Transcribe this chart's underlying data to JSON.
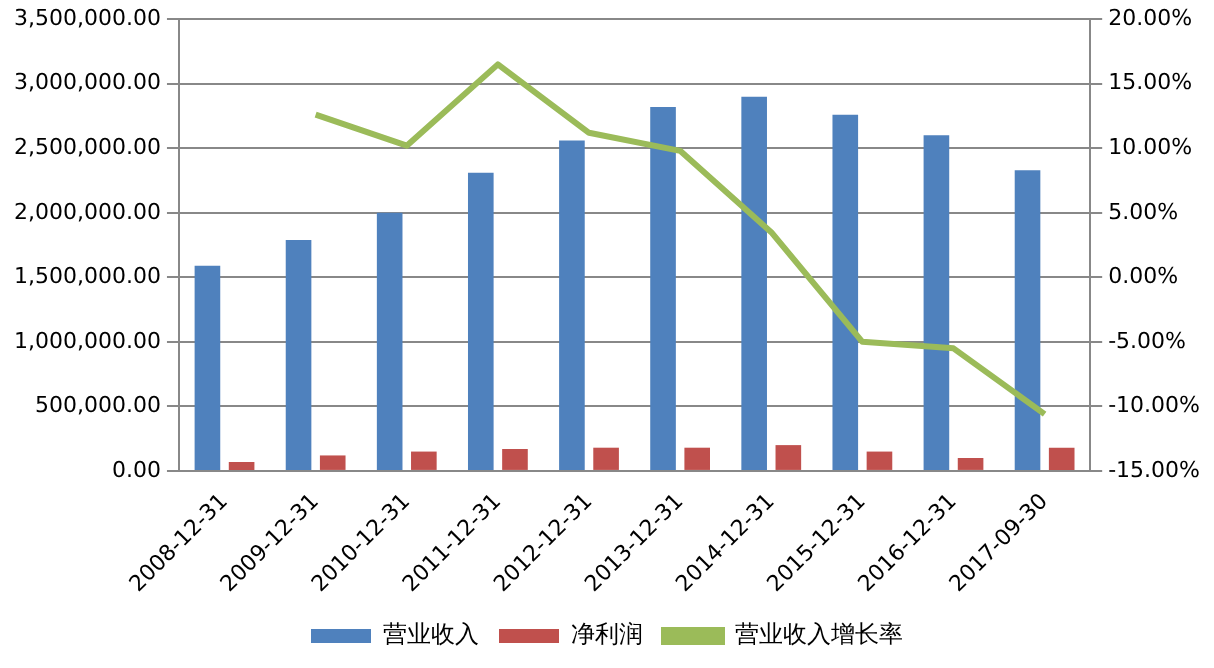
{
  "chart_data": {
    "type": "bar",
    "categories": [
      "2008-12-31",
      "2009-12-31",
      "2010-12-31",
      "2011-12-31",
      "2012-12-31",
      "2013-12-31",
      "2014-12-31",
      "2015-12-31",
      "2016-12-31",
      "2017-09-30"
    ],
    "series": [
      {
        "name": "营业收入",
        "color": "#4f81bd",
        "values": [
          1590000,
          1790000,
          2000000,
          2310000,
          2560000,
          2820000,
          2900000,
          2760000,
          2600000,
          2330000
        ]
      },
      {
        "name": "净利润",
        "color": "#c0504d",
        "values": [
          70000,
          120000,
          150000,
          170000,
          180000,
          180000,
          200000,
          150000,
          100000,
          180000
        ]
      },
      {
        "name": "营业收入增长率",
        "type": "line",
        "axis": "y2",
        "color": "#9bbb59",
        "values": [
          null,
          12.6,
          10.2,
          16.5,
          11.2,
          9.8,
          3.5,
          -5.0,
          -5.5,
          -10.6
        ]
      }
    ],
    "ylim": [
      0,
      3500000
    ],
    "yticks": [
      {
        "value": 0,
        "label": "0.00"
      },
      {
        "value": 500000,
        "label": "500,000.00"
      },
      {
        "value": 1000000,
        "label": "1,000,000.00"
      },
      {
        "value": 1500000,
        "label": "1,500,000.00"
      },
      {
        "value": 2000000,
        "label": "2,000,000.00"
      },
      {
        "value": 2500000,
        "label": "2,500,000.00"
      },
      {
        "value": 3000000,
        "label": "3,000,000.00"
      },
      {
        "value": 3500000,
        "label": "3,500,000.00"
      }
    ],
    "y2lim": [
      -15,
      20
    ],
    "y2ticks": [
      {
        "value": -15,
        "label": "-15.00%"
      },
      {
        "value": -10,
        "label": "-10.00%"
      },
      {
        "value": -5,
        "label": "-5.00%"
      },
      {
        "value": 0,
        "label": "0.00%"
      },
      {
        "value": 5,
        "label": "5.00%"
      },
      {
        "value": 10,
        "label": "10.00%"
      },
      {
        "value": 15,
        "label": "15.00%"
      },
      {
        "value": 20,
        "label": "20.00%"
      }
    ],
    "grid": "y",
    "legend": "bottom",
    "marker": "none"
  }
}
